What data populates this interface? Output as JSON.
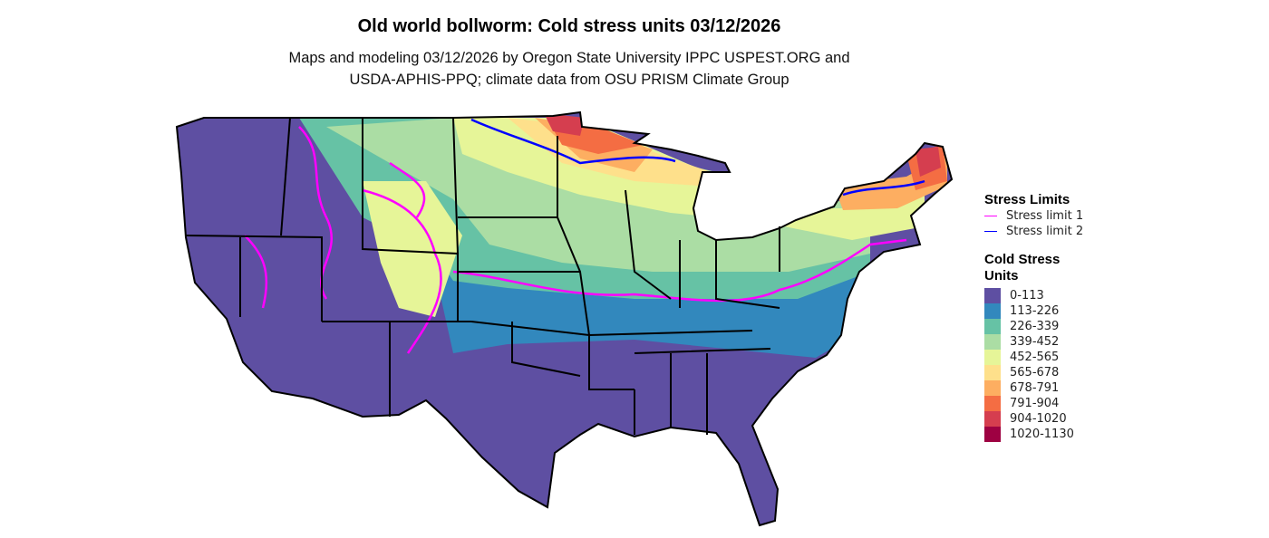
{
  "title": "Old world bollworm: Cold stress units 03/12/2026",
  "subtitle_line1": "Maps and modeling 03/12/2026 by Oregon State University IPPC USPEST.ORG and",
  "subtitle_line2": "USDA-APHIS-PPQ; climate data from OSU PRISM Climate Group",
  "legend": {
    "stress_title": "Stress Limits",
    "stress_items": [
      {
        "label": "Stress limit 1",
        "color": "#FF00FF"
      },
      {
        "label": "Stress limit 2",
        "color": "#0000FF"
      }
    ],
    "units_title_1": "Cold Stress",
    "units_title_2": "Units",
    "units_items": [
      {
        "label": "0-113",
        "color": "#5E4FA2"
      },
      {
        "label": "113-226",
        "color": "#3288BD"
      },
      {
        "label": "226-339",
        "color": "#66C2A5"
      },
      {
        "label": "339-452",
        "color": "#ABDDA4"
      },
      {
        "label": "452-565",
        "color": "#E6F598"
      },
      {
        "label": "565-678",
        "color": "#FEE08B"
      },
      {
        "label": "678-791",
        "color": "#FDAE61"
      },
      {
        "label": "791-904",
        "color": "#F46D43"
      },
      {
        "label": "904-1020",
        "color": "#D53E4F"
      },
      {
        "label": "1020-1130",
        "color": "#9E0142"
      }
    ]
  }
}
